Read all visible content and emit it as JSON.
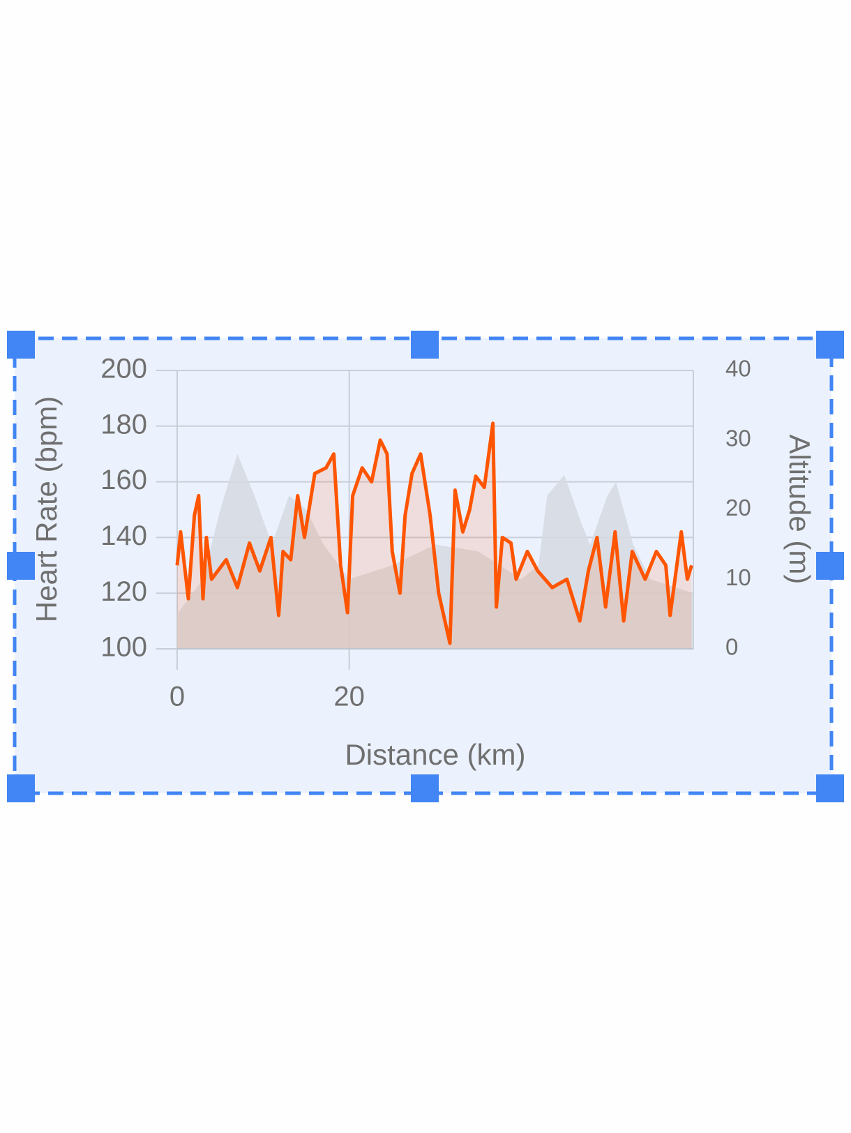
{
  "chart_data": {
    "type": "line",
    "x_label": "Distance (km)",
    "y_label": "Heart Rate (bpm)",
    "y2_label": "Altitude (m)",
    "xlim": [
      0,
      60
    ],
    "xticks": [
      0,
      20
    ],
    "ylim": [
      100,
      200
    ],
    "yticks": [
      100,
      120,
      140,
      160,
      180,
      200
    ],
    "y2lim": [
      0,
      40
    ],
    "y2ticks": [
      0,
      10,
      20,
      30,
      40
    ],
    "grid": true,
    "series": [
      {
        "color": "#ff5500",
        "x": [
          0,
          0.4,
          1.3,
          2,
          2.5,
          3,
          3.4,
          4,
          5.7,
          7,
          8.4,
          9.6,
          10.9,
          11.8,
          12.3,
          13.2,
          14,
          14.8,
          16,
          17.3,
          18.2,
          19,
          19.8,
          20.4,
          21.5,
          22.6,
          23.6,
          24.4,
          25,
          25.9,
          26.5,
          27.3,
          28.3,
          29.4,
          30.4,
          31.7,
          32.3,
          33.2,
          34,
          34.7,
          35.7,
          36.7,
          37.1,
          37.8,
          38.8,
          39.4,
          40.7,
          41.9,
          43.6,
          45.3,
          46.8,
          47.8,
          48.8,
          49.8,
          50.9,
          51.9,
          52.9,
          54.4,
          55.7,
          56.8,
          57.3,
          58.6,
          59.3,
          59.8
        ],
        "values": [
          130,
          142,
          118,
          148,
          155,
          118,
          140,
          125,
          132,
          122,
          138,
          128,
          140,
          112,
          135,
          132,
          155,
          140,
          163,
          165,
          170,
          130,
          113,
          155,
          165,
          160,
          175,
          170,
          135,
          120,
          148,
          163,
          170,
          148,
          120,
          102,
          157,
          142,
          150,
          162,
          158,
          181,
          115,
          140,
          138,
          125,
          135,
          128,
          122,
          125,
          110,
          128,
          140,
          115,
          142,
          110,
          135,
          125,
          135,
          130,
          112,
          142,
          125,
          130
        ]
      },
      {
        "color": "#d6dbe2",
        "axis": "y2",
        "x": [
          0,
          3,
          5,
          7,
          9,
          11,
          13,
          15,
          17,
          20,
          25,
          30,
          35,
          40,
          42,
          43,
          45,
          47,
          48,
          50,
          51,
          53,
          55,
          60
        ],
        "values": [
          5,
          10,
          20,
          28,
          22,
          15,
          22,
          20,
          15,
          10,
          12,
          15,
          14,
          10,
          12,
          22,
          25,
          18,
          15,
          22,
          24,
          15,
          10,
          8
        ]
      }
    ]
  }
}
